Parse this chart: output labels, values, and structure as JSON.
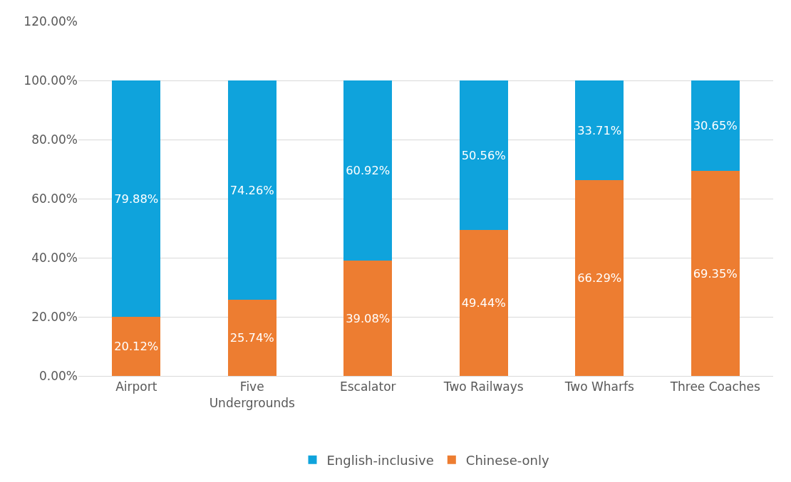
{
  "chart_data": {
    "type": "bar",
    "stacked": true,
    "categories": [
      "Airport",
      "Five\nUndergrounds",
      "Escalator",
      "Two Railways",
      "Two Wharfs",
      "Three Coaches"
    ],
    "series": [
      {
        "name": "Chinese-only",
        "color": "#ed7d31",
        "values": [
          20.12,
          25.74,
          39.08,
          49.44,
          66.29,
          69.35
        ],
        "value_labels": [
          "20.12%",
          "25.74%",
          "39.08%",
          "49.44%",
          "66.29%",
          "69.35%"
        ]
      },
      {
        "name": "English-inclusive",
        "color": "#0fa3dc",
        "values": [
          79.88,
          74.26,
          60.92,
          50.56,
          33.71,
          30.65
        ],
        "value_labels": [
          "79.88%",
          "74.26%",
          "60.92%",
          "50.56%",
          "33.71%",
          "30.65%"
        ]
      }
    ],
    "ylim": [
      0,
      120
    ],
    "yticks": [
      {
        "value": 0,
        "label": "0.00%"
      },
      {
        "value": 20,
        "label": "20.00%"
      },
      {
        "value": 40,
        "label": "40.00%"
      },
      {
        "value": 60,
        "label": "60.00%"
      },
      {
        "value": 80,
        "label": "80.00%"
      },
      {
        "value": 100,
        "label": "100.00%"
      },
      {
        "value": 120,
        "label": "120.00%"
      }
    ],
    "grid": "y",
    "legend": "bottom"
  }
}
